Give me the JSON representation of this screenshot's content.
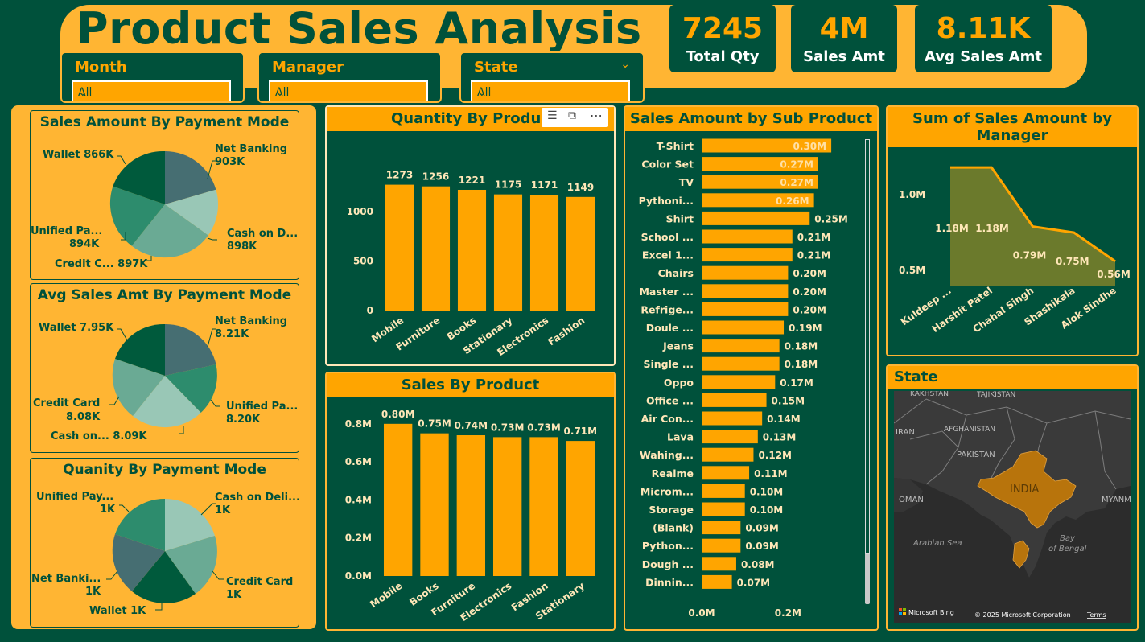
{
  "header": {
    "title": "Product Sales Analysis"
  },
  "slicers": [
    {
      "label": "Month",
      "value": "All"
    },
    {
      "label": "Manager",
      "value": "All"
    },
    {
      "label": "State",
      "value": "All"
    }
  ],
  "kpis": [
    {
      "value": "7245",
      "label": "Total Qty"
    },
    {
      "value": "4M",
      "label": "Sales Amt"
    },
    {
      "value": "8.11K",
      "label": "Avg Sales Amt"
    }
  ],
  "pies": [
    {
      "title": "Sales Amount By Payment Mode",
      "labels": [
        {
          "name": "Wallet 866K",
          "value": ""
        },
        {
          "name": "Net Banking",
          "value": "903K"
        },
        {
          "name": "Cash on D...",
          "value": "898K"
        },
        {
          "name": "Credit C... 897K",
          "value": ""
        },
        {
          "name": "Unified Pa...",
          "value": "894K"
        }
      ]
    },
    {
      "title": "Avg Sales Amt By Payment Mode",
      "labels": [
        {
          "name": "Wallet 7.95K",
          "value": ""
        },
        {
          "name": "Net Banking",
          "value": "8.21K"
        },
        {
          "name": "Unified Pa...",
          "value": "8.20K"
        },
        {
          "name": "Cash on... 8.09K",
          "value": ""
        },
        {
          "name": "Credit Card",
          "value": "8.08K"
        }
      ]
    },
    {
      "title": "Quanity By Payment Mode",
      "labels": [
        {
          "name": "Unified Pay...",
          "value": "1K"
        },
        {
          "name": "Cash on Deli...",
          "value": "1K"
        },
        {
          "name": "Credit Card",
          "value": "1K"
        },
        {
          "name": "Wallet 1K",
          "value": ""
        },
        {
          "name": "Net Banki...",
          "value": "1K"
        }
      ]
    }
  ],
  "colors": {
    "bg": "#00513b",
    "accent": "#ffa500",
    "panel": "#ffb533",
    "map_region": "#b8740c"
  },
  "visual_header_icons": [
    "filter-icon",
    "focus-mode-icon",
    "more-options-icon"
  ],
  "chart_data": [
    {
      "type": "bar",
      "title": "Quantity By Product",
      "categories": [
        "Mobile",
        "Furniture",
        "Books",
        "Stationary",
        "Electronics",
        "Fashion"
      ],
      "values": [
        1273,
        1256,
        1221,
        1175,
        1171,
        1149
      ],
      "data_labels": [
        "1273",
        "1256",
        "1221",
        "1175",
        "1171",
        "1149"
      ],
      "yticks": [
        "0",
        "500",
        "1000"
      ],
      "ylim": [
        0,
        1400
      ]
    },
    {
      "type": "bar",
      "title": "Sales By Product",
      "categories": [
        "Mobile",
        "Books",
        "Furniture",
        "Electronics",
        "Fashion",
        "Stationary"
      ],
      "values": [
        0.8,
        0.75,
        0.74,
        0.73,
        0.73,
        0.71
      ],
      "data_labels": [
        "0.80M",
        "0.75M",
        "0.74M",
        "0.73M",
        "0.73M",
        "0.71M"
      ],
      "yticks": [
        "0.0M",
        "0.2M",
        "0.4M",
        "0.6M",
        "0.8M"
      ],
      "ylim": [
        0,
        0.85
      ]
    },
    {
      "type": "bar",
      "orientation": "horizontal",
      "title": "Sales Amount by Sub Product",
      "categories": [
        "T-Shirt",
        "Color Set",
        "TV",
        "Pythoni...",
        "Shirt",
        "School ...",
        "Excel 1...",
        "Chairs",
        "Master ...",
        "Refrige...",
        "Doule ...",
        "Jeans",
        "Single ...",
        "Oppo",
        "Office ...",
        "Air Con...",
        "Lava",
        "Wahing...",
        "Realme",
        "Microm...",
        "Storage",
        "(Blank)",
        "Python...",
        "Dough ...",
        "Dinnin..."
      ],
      "values": [
        0.3,
        0.27,
        0.27,
        0.26,
        0.25,
        0.21,
        0.21,
        0.2,
        0.2,
        0.2,
        0.19,
        0.18,
        0.18,
        0.17,
        0.15,
        0.14,
        0.13,
        0.12,
        0.11,
        0.1,
        0.1,
        0.09,
        0.09,
        0.08,
        0.07
      ],
      "data_labels": [
        "0.30M",
        "0.27M",
        "0.27M",
        "0.26M",
        "0.25M",
        "0.21M",
        "0.21M",
        "0.20M",
        "0.20M",
        "0.20M",
        "0.19M",
        "0.18M",
        "0.18M",
        "0.17M",
        "0.15M",
        "0.14M",
        "0.13M",
        "0.12M",
        "0.11M",
        "0.10M",
        "0.10M",
        "0.09M",
        "0.09M",
        "0.08M",
        "0.07M"
      ],
      "xticks": [
        "0.0M",
        "0.2M"
      ],
      "xlim": [
        0,
        0.2
      ]
    },
    {
      "type": "area",
      "title": "Sum of Sales Amount by Manager",
      "categories": [
        "Kuldeep ...",
        "Harshit Patel",
        "Chahal Singh",
        "Shashikala",
        "Alok Sindhe"
      ],
      "values": [
        1.18,
        1.18,
        0.79,
        0.75,
        0.56
      ],
      "data_labels": [
        "1.18M",
        "1.18M",
        "0.79M",
        "0.75M",
        "0.56M"
      ],
      "yticks": [
        "0.5M",
        "1.0M"
      ],
      "ylim": [
        0.4,
        1.25
      ]
    }
  ],
  "map": {
    "title": "State",
    "place_labels": [
      "TAJIKISTAN",
      "AFGHANISTAN",
      "PAKISTAN",
      "IRAN",
      "OMAN",
      "INDIA",
      "MYANMA",
      "Arabian Sea",
      "Bay",
      "of Bengal",
      "KAKHSTAN"
    ],
    "attribution_logo": "Microsoft Bing",
    "copyright": "© 2025 Microsoft Corporation",
    "terms_link": "Terms"
  }
}
